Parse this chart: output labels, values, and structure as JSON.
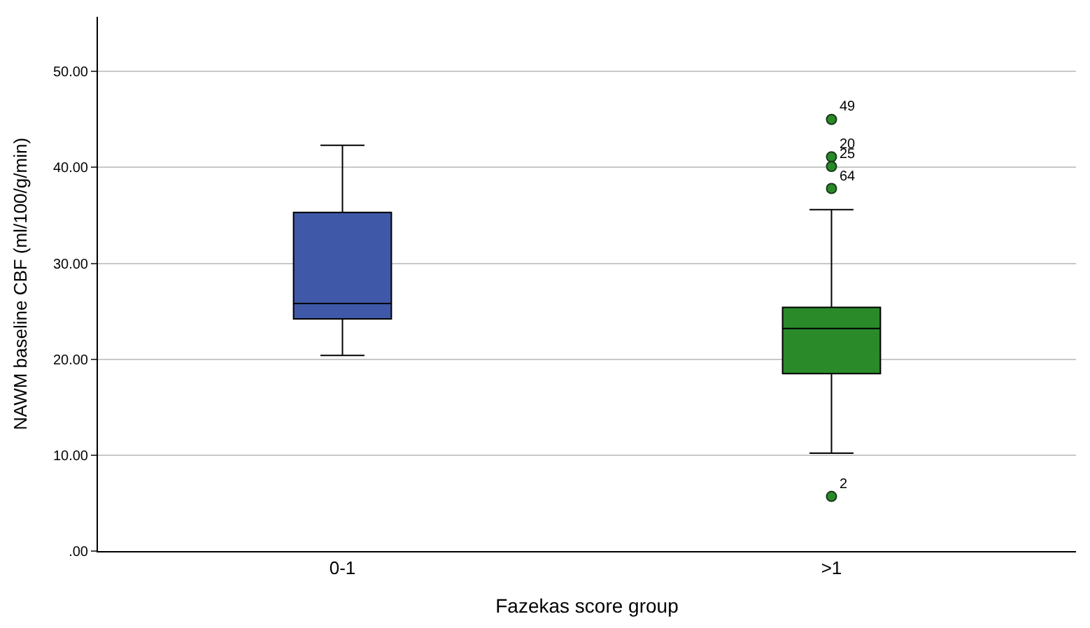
{
  "chart_data": {
    "type": "box",
    "xlabel": "Fazekas score group",
    "ylabel": "NAWM baseline CBF (ml/100/g/min)",
    "categories": [
      "0-1",
      ">1"
    ],
    "colors": [
      "#3f58a8",
      "#2a8a2a"
    ],
    "boxes": [
      {
        "low": 20.4,
        "q1": 24.2,
        "median": 25.8,
        "q3": 35.3,
        "high": 42.3
      },
      {
        "low": 10.2,
        "q1": 18.5,
        "median": 23.2,
        "q3": 25.4,
        "high": 35.6,
        "outliers": [
          45.0,
          41.1,
          40.1,
          37.8,
          5.7
        ]
      }
    ],
    "annotations": [
      "49",
      "20",
      "25",
      "64",
      "2"
    ],
    "ylim": [
      0,
      55.7
    ],
    "yticks": [
      {
        "value": 0,
        "label": ".00"
      },
      {
        "value": 10,
        "label": "10.00"
      },
      {
        "value": 20,
        "label": "20.00"
      },
      {
        "value": 30,
        "label": "30.00"
      },
      {
        "value": 40,
        "label": "40.00"
      },
      {
        "value": 50,
        "label": "50.00"
      }
    ],
    "grid": "y"
  }
}
